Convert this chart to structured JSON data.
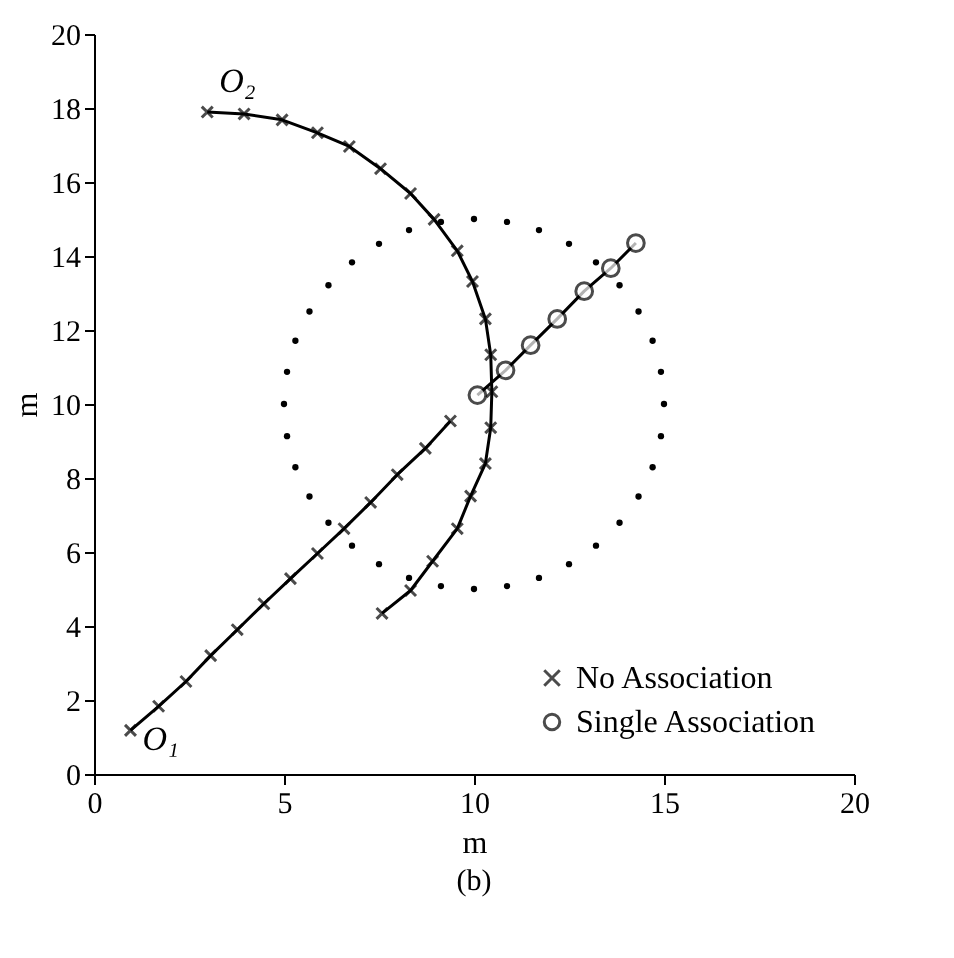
{
  "chart_data": {
    "type": "line",
    "xlabel": "m",
    "ylabel": "m",
    "xlim": [
      0,
      20
    ],
    "ylim": [
      0,
      20
    ],
    "xticks": [
      0,
      5,
      10,
      15,
      20
    ],
    "yticks": [
      0,
      2,
      4,
      6,
      8,
      10,
      12,
      14,
      16,
      18,
      20
    ],
    "grid": false,
    "legend": "bottom right",
    "series": [
      {
        "name": "No Association",
        "color": "#000000",
        "marker": "cross",
        "line_style": "solid",
        "x": [
          0.96,
          1.7,
          2.42,
          3.07,
          3.77,
          4.47,
          5.17,
          5.88,
          6.58,
          7.28,
          7.98,
          8.72,
          9.38
        ],
        "values": [
          1.18,
          1.83,
          2.5,
          3.2,
          3.9,
          4.6,
          5.28,
          5.96,
          6.63,
          7.34,
          8.09,
          8.8,
          9.54
        ]
      },
      {
        "name": "Single Association",
        "color": "#000000",
        "marker": "circle",
        "line_style": "solid",
        "x": [
          10.09,
          10.83,
          11.49,
          12.19,
          12.9,
          13.6,
          14.26
        ],
        "values": [
          10.24,
          10.91,
          11.59,
          12.3,
          13.05,
          13.67,
          14.35
        ]
      },
      {
        "color": "#000000",
        "marker": "cross",
        "line_style": "solid",
        "x": [
          2.98,
          3.95,
          4.95,
          5.88,
          6.72,
          7.54,
          8.33,
          8.95,
          9.56,
          9.96,
          10.3,
          10.44,
          10.47,
          10.44,
          10.3,
          9.91,
          9.56,
          8.91,
          8.33,
          7.58
        ],
        "values": [
          17.89,
          17.84,
          17.68,
          17.33,
          16.96,
          16.36,
          15.69,
          14.99,
          14.14,
          13.31,
          12.3,
          11.33,
          10.33,
          9.36,
          8.39,
          7.51,
          6.63,
          5.75,
          4.96,
          4.34
        ]
      },
      {
        "type": "scatter",
        "color": "#000000",
        "marker": "circle",
        "x": [
          15,
          14.92,
          14.7,
          14.33,
          13.83,
          13.21,
          12.5,
          11.71,
          10.87,
          10,
          9.13,
          8.29,
          7.5,
          6.79,
          6.17,
          5.67,
          5.3,
          5.08,
          5,
          5.08,
          5.3,
          5.67,
          6.17,
          6.79,
          7.5,
          8.29,
          9.13,
          10,
          10.87,
          11.71,
          12.5,
          13.21,
          13.83,
          14.33,
          14.7,
          14.92
        ],
        "values": [
          10,
          10.87,
          11.71,
          12.5,
          13.21,
          13.83,
          14.33,
          14.7,
          14.92,
          15,
          14.92,
          14.7,
          14.33,
          13.83,
          13.21,
          12.5,
          11.71,
          10.87,
          10,
          9.13,
          8.29,
          7.5,
          6.79,
          6.17,
          5.67,
          5.3,
          5.08,
          5,
          5.08,
          5.3,
          5.67,
          6.17,
          6.79,
          7.5,
          8.29,
          9.13
        ]
      }
    ],
    "annotations": [
      {
        "text": "O₁",
        "x": 0.96,
        "y": 1.18
      },
      {
        "text": "O₂",
        "x": 2.98,
        "y": 17.89
      },
      "(b)"
    ]
  }
}
